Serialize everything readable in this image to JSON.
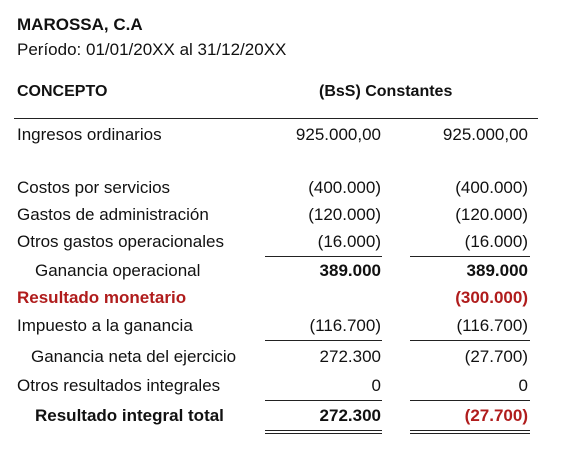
{
  "company": "MAROSSA, C.A",
  "period": "Período: 01/01/20XX al 31/12/20XX",
  "header": {
    "concept": "CONCEPTO",
    "currency": "(BsS) Constantes"
  },
  "rows": [
    {
      "label": "Ingresos ordinarios",
      "col1": "925.000,00",
      "col2": "925.000,00"
    },
    {
      "label": "Costos por servicios",
      "col1": "(400.000)",
      "col2": "(400.000)"
    },
    {
      "label": "Gastos de administración",
      "col1": "(120.000)",
      "col2": "(120.000)"
    },
    {
      "label": "Otros gastos operacionales",
      "col1": "(16.000)",
      "col2": "(16.000)"
    },
    {
      "label": "Ganancia operacional",
      "col1": "389.000",
      "col2": "389.000"
    },
    {
      "label": "Resultado monetario",
      "col1": "",
      "col2": "(300.000)"
    },
    {
      "label": "Impuesto a la ganancia",
      "col1": "(116.700)",
      "col2": "(116.700)"
    },
    {
      "label": "Ganancia neta del ejercicio",
      "col1": "272.300",
      "col2": "(27.700)"
    },
    {
      "label": "Otros resultados integrales",
      "col1": "0",
      "col2": "0"
    },
    {
      "label": "Resultado integral total",
      "col1": "272.300",
      "col2": "(27.700)"
    }
  ],
  "colors": {
    "text": "#111111",
    "highlight_red": "#b01c1c"
  }
}
